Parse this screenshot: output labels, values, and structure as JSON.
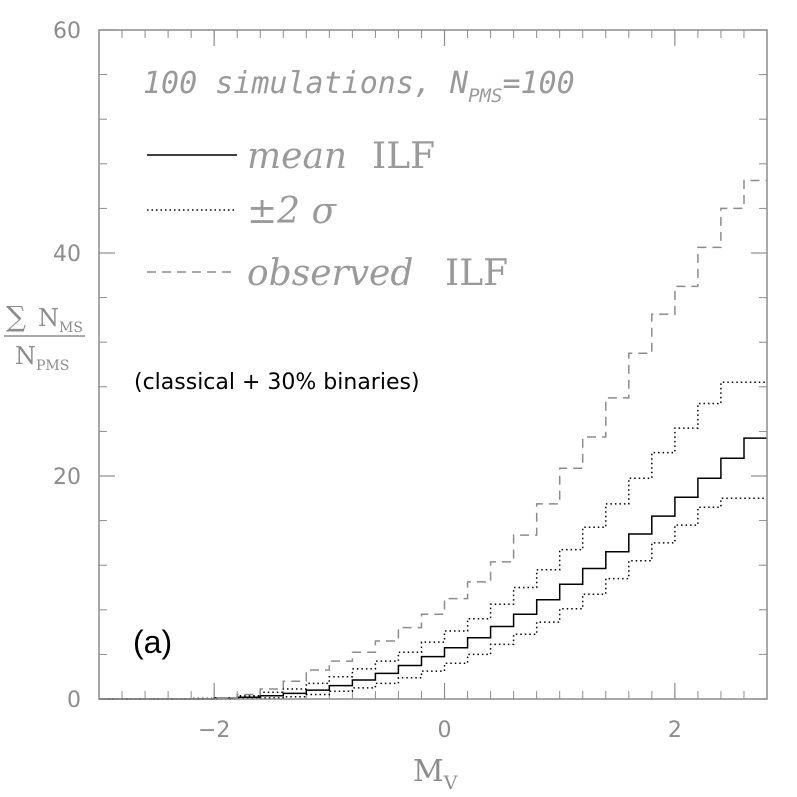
{
  "chart_data": {
    "type": "line",
    "style": "step",
    "panel_label": "(a)",
    "title_prefix": "100 simulations, ",
    "title_N": "N",
    "title_sub": "PMS",
    "title_suffix": "=100",
    "annotation": "(classical + 30% binaries)",
    "xlabel_main": "M",
    "xlabel_sub": "V",
    "ylabel_sum": "∑",
    "ylabel_num": "N",
    "ylabel_num_sub": "MS",
    "ylabel_den": "N",
    "ylabel_den_sub": "PMS",
    "xlim": [
      -3.0,
      2.8
    ],
    "ylim": [
      0,
      60
    ],
    "x_ticks": [
      "−2",
      "0",
      "2"
    ],
    "y_ticks": [
      "0",
      "20",
      "40",
      "60"
    ],
    "x_tick_values": [
      -2,
      0,
      2
    ],
    "y_tick_values": [
      0,
      20,
      40,
      60
    ],
    "x_minor_step": 0.2,
    "y_minor_step": 4,
    "legend": [
      {
        "style": "solid",
        "label": "mean",
        "suffix": "ILF"
      },
      {
        "style": "dotted",
        "label": "±2 σ",
        "suffix": ""
      },
      {
        "style": "dashed",
        "label": "observed",
        "suffix": "ILF"
      }
    ],
    "x": [
      -3.0,
      -2.8,
      -2.6,
      -2.4,
      -2.2,
      -2.0,
      -1.8,
      -1.6,
      -1.4,
      -1.2,
      -1.0,
      -0.8,
      -0.6,
      -0.4,
      -0.2,
      0.0,
      0.2,
      0.4,
      0.6,
      0.8,
      1.0,
      1.2,
      1.4,
      1.6,
      1.8,
      2.0,
      2.2,
      2.4,
      2.6,
      2.8
    ],
    "series": [
      {
        "name": "mean ILF",
        "style": "solid",
        "color": "#000000",
        "values": [
          0,
          0,
          0,
          0,
          0,
          0.05,
          0.15,
          0.3,
          0.5,
          0.8,
          1.2,
          1.7,
          2.3,
          3.0,
          3.8,
          4.6,
          5.5,
          6.5,
          7.6,
          8.9,
          10.3,
          11.7,
          13.2,
          14.8,
          16.4,
          18.1,
          19.8,
          21.6,
          23.4,
          23.4
        ]
      },
      {
        "name": "+2 sigma",
        "style": "dotted",
        "color": "#000000",
        "values": [
          0,
          0,
          0,
          0,
          0.05,
          0.1,
          0.3,
          0.6,
          0.9,
          1.4,
          2.0,
          2.7,
          3.4,
          4.2,
          5.1,
          6.1,
          7.2,
          8.5,
          10.0,
          11.6,
          13.4,
          15.4,
          17.5,
          19.8,
          22.1,
          24.3,
          26.5,
          28.4,
          28.4,
          28.4
        ]
      },
      {
        "name": "-2 sigma",
        "style": "dotted",
        "color": "#000000",
        "values": [
          0,
          0,
          0,
          0,
          0,
          0,
          0.05,
          0.1,
          0.2,
          0.4,
          0.7,
          1.0,
          1.4,
          1.9,
          2.5,
          3.2,
          4.0,
          4.9,
          5.8,
          6.9,
          8.1,
          9.4,
          10.8,
          12.4,
          14.0,
          15.6,
          17.2,
          18.0,
          18.0,
          18.0
        ]
      },
      {
        "name": "observed ILF",
        "style": "dashed",
        "color": "#8c8c8c",
        "values": [
          0,
          0,
          0,
          0,
          0,
          0.1,
          0.4,
          0.9,
          1.6,
          2.6,
          3.4,
          4.2,
          5.2,
          6.4,
          7.6,
          9.0,
          10.5,
          12.3,
          14.7,
          17.5,
          20.7,
          23.5,
          27.0,
          31.0,
          34.5,
          37.0,
          40.5,
          44.0,
          46.5,
          46.5
        ]
      }
    ]
  }
}
